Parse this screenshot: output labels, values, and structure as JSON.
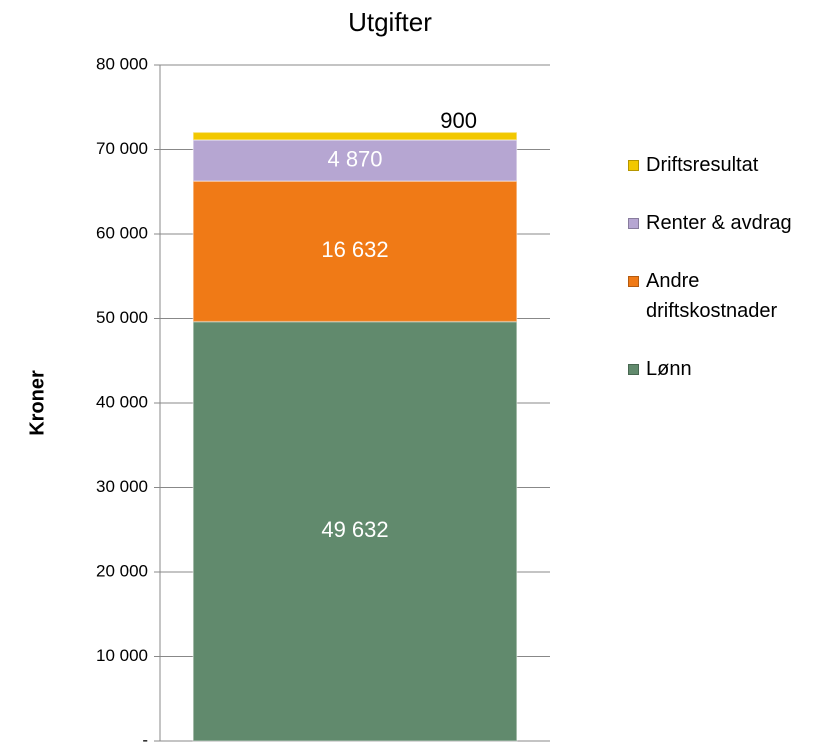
{
  "chart_data": {
    "type": "stacked_bar",
    "title": "Utgifter",
    "y_label": "Kroner",
    "categories": [
      null
    ],
    "series": [
      {
        "name": "Lønn",
        "color": "#618a6d",
        "values": [
          49632
        ],
        "value_labels": [
          "49 632"
        ]
      },
      {
        "name": "Andre driftskostnader",
        "color": "#f07a16",
        "values": [
          16632
        ],
        "value_labels": [
          "16 632"
        ]
      },
      {
        "name": "Renter & avdrag",
        "color": "#b6a6d2",
        "values": [
          4870
        ],
        "value_labels": [
          "4 870"
        ]
      },
      {
        "name": "Driftsresultat",
        "color": "#f2c800",
        "values": [
          900
        ],
        "value_labels": [
          "900"
        ]
      }
    ],
    "ylim": [
      0,
      80000
    ],
    "yticks": [
      {
        "value": 0,
        "label": "-"
      },
      {
        "value": 10000,
        "label": "10 000"
      },
      {
        "value": 20000,
        "label": "20 000"
      },
      {
        "value": 30000,
        "label": "30 000"
      },
      {
        "value": 40000,
        "label": "40 000"
      },
      {
        "value": 50000,
        "label": "50 000"
      },
      {
        "value": 60000,
        "label": "60 000"
      },
      {
        "value": 70000,
        "label": "70 000"
      },
      {
        "value": 80000,
        "label": "80 000"
      }
    ],
    "grid": true,
    "legend": "right"
  }
}
